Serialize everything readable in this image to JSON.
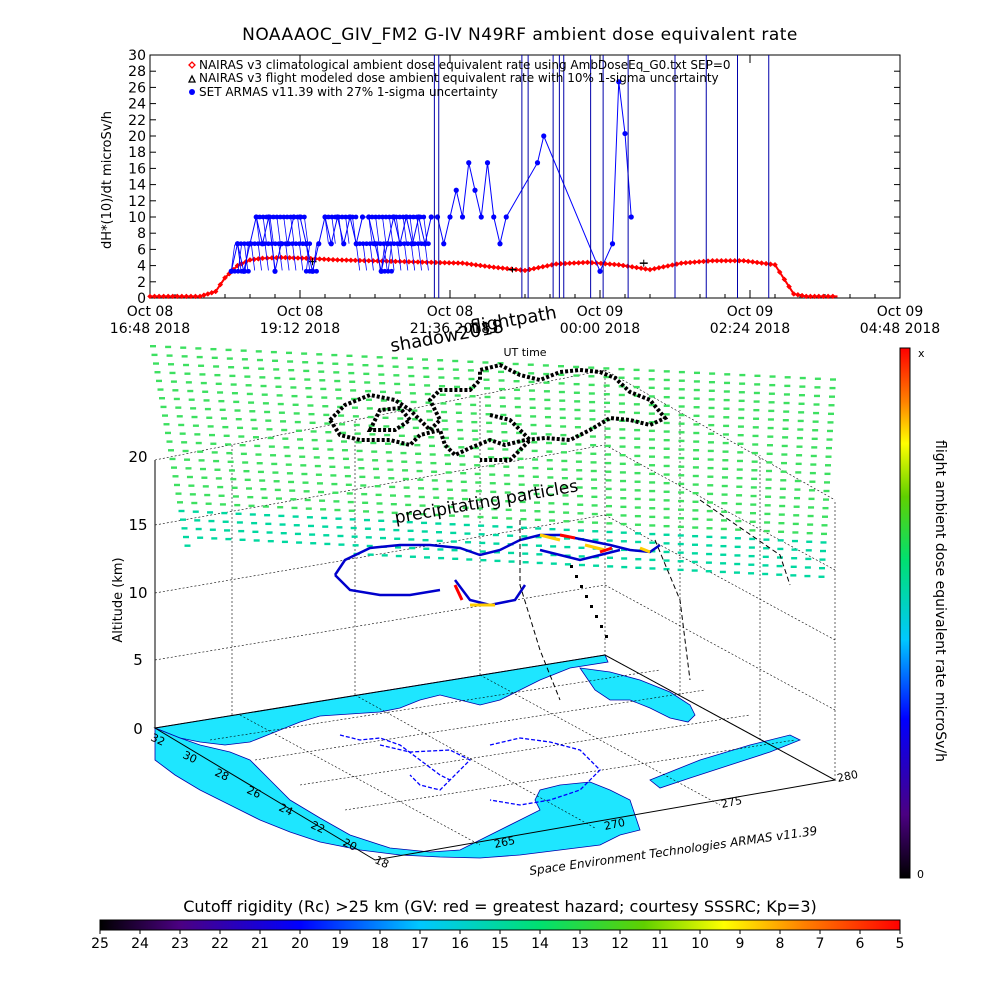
{
  "header": {
    "title": "NOAAAOC_GIV_FM2 G-IV    N49RF   ambient dose equivalent rate"
  },
  "legend": [
    {
      "symbol": "diamond",
      "color": "#ff0000",
      "label": "NAIRAS v3 climatological ambient dose equivalent rate using AmbDoseEq_G0.txt SEP=0"
    },
    {
      "symbol": "triangle",
      "color": "#000000",
      "label": "NAIRAS v3 flight modeled dose ambient equivalent rate with 10% 1-sigma uncertainty"
    },
    {
      "symbol": "dot",
      "color": "#0000ff",
      "label": "SET ARMAS v11.39 with 27% 1-sigma uncertainty"
    }
  ],
  "chart_data": [
    {
      "type": "line",
      "ylabel": "dH*(10)/dt microSv/h",
      "xlabel": "UT time",
      "ylim": [
        0,
        30
      ],
      "yticks": [
        0,
        2,
        4,
        6,
        8,
        10,
        12,
        14,
        16,
        18,
        20,
        22,
        24,
        26,
        28,
        30
      ],
      "x_ticks": [
        {
          "line1": "Oct 08",
          "line2": "16:48 2018"
        },
        {
          "line1": "Oct 08",
          "line2": "19:12 2018"
        },
        {
          "line1": "Oct 08",
          "line2": "21:36 2018"
        },
        {
          "line1": "Oct 09",
          "line2": "00:00 2018"
        },
        {
          "line1": "Oct 09",
          "line2": "02:24 2018"
        },
        {
          "line1": "Oct 09",
          "line2": "04:48 2018"
        }
      ],
      "x_range_hours": [
        0,
        12
      ],
      "series": [
        {
          "name": "NAIRAS v3 climatological ambient dose equivalent rate using AmbDoseEq_G0.txt SEP=0",
          "color": "#ff0000",
          "x_hours": [
            0.0,
            0.8,
            1.05,
            1.2,
            1.4,
            1.6,
            1.8,
            2.1,
            2.5,
            3.0,
            3.5,
            4.0,
            4.5,
            5.0,
            5.5,
            6.0,
            6.5,
            7.0,
            7.5,
            8.0,
            8.5,
            9.0,
            9.5,
            10.0,
            10.3,
            10.5,
            10.7,
            11.0
          ],
          "values": [
            0.2,
            0.2,
            0.8,
            2.5,
            4.0,
            4.7,
            4.9,
            5.0,
            4.9,
            4.7,
            4.6,
            4.5,
            4.4,
            4.3,
            3.8,
            3.4,
            4.2,
            4.4,
            4.1,
            3.5,
            4.3,
            4.6,
            4.6,
            4.1,
            0.5,
            0.2,
            0.2,
            0.2
          ]
        },
        {
          "name": "NAIRAS v3 flight modeled dose ambient equivalent rate with 10% 1-sigma uncertainty",
          "color": "#000000",
          "x_hours": [
            2.6,
            5.8,
            7.9
          ],
          "values": [
            4.5,
            3.5,
            4.3
          ]
        },
        {
          "name": "SET ARMAS v11.39 with 27% 1-sigma uncertainty",
          "color": "#0000ff",
          "x_hours": [
            1.3,
            1.4,
            1.5,
            1.6,
            1.7,
            1.8,
            1.9,
            2.0,
            2.1,
            2.2,
            2.3,
            2.4,
            2.5,
            2.6,
            2.7,
            2.8,
            2.9,
            3.0,
            3.1,
            3.2,
            3.3,
            3.4,
            3.5,
            3.6,
            3.7,
            3.8,
            3.9,
            4.0,
            4.1,
            4.2,
            4.3,
            4.4,
            4.5,
            4.6,
            4.7,
            4.8,
            4.9,
            5.0,
            5.1,
            5.2,
            5.3,
            5.4,
            5.5,
            5.6,
            5.7,
            6.2,
            6.3,
            7.2,
            7.4,
            7.5,
            7.6,
            7.7
          ],
          "values": [
            3.3,
            6.7,
            3.3,
            6.7,
            10.0,
            6.7,
            10.0,
            3.3,
            6.7,
            6.7,
            10.0,
            10.0,
            6.7,
            3.3,
            6.7,
            10.0,
            6.7,
            10.0,
            6.7,
            10.0,
            6.7,
            10.0,
            10.0,
            6.7,
            3.3,
            6.7,
            10.0,
            6.7,
            10.0,
            6.7,
            10.0,
            6.7,
            10.0,
            10.0,
            6.7,
            10.0,
            13.3,
            10.0,
            16.7,
            13.3,
            10.0,
            16.7,
            10.0,
            6.7,
            10.0,
            16.7,
            20.0,
            3.3,
            6.7,
            26.7,
            20.3,
            10.0
          ]
        }
      ]
    },
    {
      "type": "scatter",
      "zlabel": "Altitude (km)",
      "zticks": [
        0,
        5,
        10,
        15,
        20
      ],
      "lat_ticks": [
        18,
        20,
        22,
        24,
        26,
        28,
        30,
        32
      ],
      "lon_ticks": [
        265,
        270,
        275,
        280
      ],
      "colorbar_label": "flight ambient dose equivalent rate microSv/h",
      "colorbar_top": "x",
      "colorbar_bottom": "0",
      "annotations": [
        "shadow2018",
        "flightpath",
        "precipitating particles",
        "Space Environment Technologies ARMAS v11.39"
      ]
    }
  ],
  "footer": {
    "cutoff_title": "Cutoff rigidity (Rc) >25 km (GV: red = greatest hazard; courtesy SSSRC; Kp=3)",
    "cutoff_ticks": [
      "25",
      "24",
      "23",
      "22",
      "21",
      "20",
      "19",
      "18",
      "17",
      "16",
      "15",
      "14",
      "13",
      "12",
      "11",
      "10",
      "9",
      "8",
      "7",
      "6",
      "5"
    ]
  },
  "colors": {
    "red_series": "#ff0000",
    "blue_series": "#0000ff",
    "map_fill": "#1ee6ff",
    "grid_green": "#2ddc6e"
  }
}
